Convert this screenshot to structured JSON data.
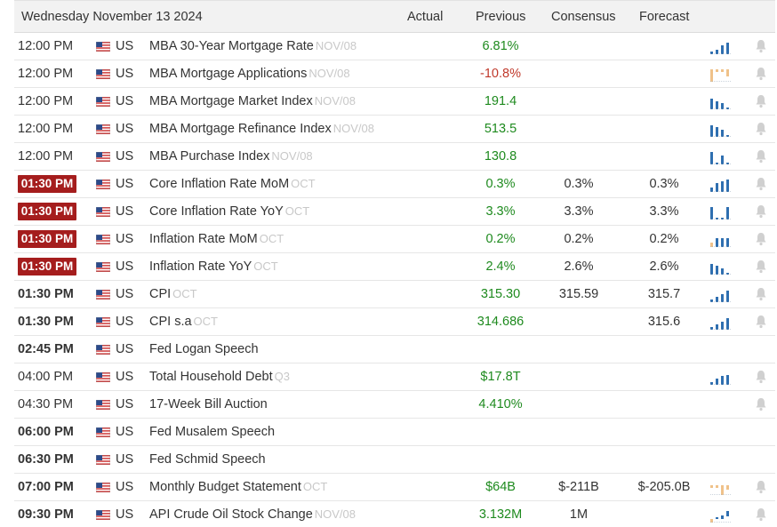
{
  "header": {
    "date": "Wednesday November 13 2024",
    "actual": "Actual",
    "previous": "Previous",
    "consensus": "Consensus",
    "forecast": "Forecast"
  },
  "colors": {
    "badge": "#a51d1d",
    "positive": "#1e8a1e",
    "negative": "#c0392b",
    "spark_blue": "#2f6fb0",
    "spark_orange": "#f0c28a"
  },
  "rows": [
    {
      "time": "12:00 PM",
      "style": "normal",
      "country": "US",
      "event": "MBA 30-Year Mortgage Rate",
      "ref": "NOV/08",
      "actual": "",
      "previous": "6.81%",
      "prev_color": "green",
      "consensus": "",
      "forecast": "",
      "spark": "mortgage-rate-spark",
      "spark_color": "blue",
      "bell": true
    },
    {
      "time": "12:00 PM",
      "style": "normal",
      "country": "US",
      "event": "MBA Mortgage Applications",
      "ref": "NOV/08",
      "actual": "",
      "previous": "-10.8%",
      "prev_color": "red",
      "consensus": "",
      "forecast": "",
      "spark": "mortgage-applications-spark",
      "spark_color": "orange",
      "bell": true
    },
    {
      "time": "12:00 PM",
      "style": "normal",
      "country": "US",
      "event": "MBA Mortgage Market Index",
      "ref": "NOV/08",
      "actual": "",
      "previous": "191.4",
      "prev_color": "green",
      "consensus": "",
      "forecast": "",
      "spark": "market-index-spark",
      "spark_color": "blue",
      "bell": true
    },
    {
      "time": "12:00 PM",
      "style": "normal",
      "country": "US",
      "event": "MBA Mortgage Refinance Index",
      "ref": "NOV/08",
      "actual": "",
      "previous": "513.5",
      "prev_color": "green",
      "consensus": "",
      "forecast": "",
      "spark": "refinance-index-spark",
      "spark_color": "blue",
      "bell": true
    },
    {
      "time": "12:00 PM",
      "style": "normal",
      "country": "US",
      "event": "MBA Purchase Index",
      "ref": "NOV/08",
      "actual": "",
      "previous": "130.8",
      "prev_color": "green",
      "consensus": "",
      "forecast": "",
      "spark": "purchase-index-spark",
      "spark_color": "blue",
      "bell": true
    },
    {
      "time": "01:30 PM",
      "style": "badge",
      "country": "US",
      "event": "Core Inflation Rate MoM",
      "ref": "OCT",
      "actual": "",
      "previous": "0.3%",
      "prev_color": "green",
      "consensus": "0.3%",
      "forecast": "0.3%",
      "spark": "core-inflation-mom-spark",
      "spark_color": "blue",
      "bell": true
    },
    {
      "time": "01:30 PM",
      "style": "badge",
      "country": "US",
      "event": "Core Inflation Rate YoY",
      "ref": "OCT",
      "actual": "",
      "previous": "3.3%",
      "prev_color": "green",
      "consensus": "3.3%",
      "forecast": "3.3%",
      "spark": "core-inflation-yoy-spark",
      "spark_color": "blue",
      "bell": true
    },
    {
      "time": "01:30 PM",
      "style": "badge",
      "country": "US",
      "event": "Inflation Rate MoM",
      "ref": "OCT",
      "actual": "",
      "previous": "0.2%",
      "prev_color": "green",
      "consensus": "0.2%",
      "forecast": "0.2%",
      "spark": "inflation-mom-spark",
      "spark_color": "mixed",
      "bell": true
    },
    {
      "time": "01:30 PM",
      "style": "badge",
      "country": "US",
      "event": "Inflation Rate YoY",
      "ref": "OCT",
      "actual": "",
      "previous": "2.4%",
      "prev_color": "green",
      "consensus": "2.6%",
      "forecast": "2.6%",
      "spark": "inflation-yoy-spark",
      "spark_color": "blue",
      "bell": true
    },
    {
      "time": "01:30 PM",
      "style": "bold",
      "country": "US",
      "event": "CPI",
      "ref": "OCT",
      "actual": "",
      "previous": "315.30",
      "prev_color": "green",
      "consensus": "315.59",
      "forecast": "315.7",
      "spark": "cpi-spark",
      "spark_color": "blue",
      "bell": true
    },
    {
      "time": "01:30 PM",
      "style": "bold",
      "country": "US",
      "event": "CPI s.a",
      "ref": "OCT",
      "actual": "",
      "previous": "314.686",
      "prev_color": "green",
      "consensus": "",
      "forecast": "315.6",
      "spark": "cpi-sa-spark",
      "spark_color": "blue",
      "bell": true
    },
    {
      "time": "02:45 PM",
      "style": "bold",
      "country": "US",
      "event": "Fed Logan Speech",
      "ref": "",
      "actual": "",
      "previous": "",
      "prev_color": "green",
      "consensus": "",
      "forecast": "",
      "spark": "",
      "spark_color": "",
      "bell": false
    },
    {
      "time": "04:00 PM",
      "style": "normal",
      "country": "US",
      "event": "Total Household Debt",
      "ref": "Q3",
      "actual": "",
      "previous": "$17.8T",
      "prev_color": "green",
      "consensus": "",
      "forecast": "",
      "spark": "household-debt-spark",
      "spark_color": "blue",
      "bell": true
    },
    {
      "time": "04:30 PM",
      "style": "normal",
      "country": "US",
      "event": "17-Week Bill Auction",
      "ref": "",
      "actual": "",
      "previous": "4.410%",
      "prev_color": "green",
      "consensus": "",
      "forecast": "",
      "spark": "",
      "spark_color": "",
      "bell": true
    },
    {
      "time": "06:00 PM",
      "style": "bold",
      "country": "US",
      "event": "Fed Musalem Speech",
      "ref": "",
      "actual": "",
      "previous": "",
      "prev_color": "green",
      "consensus": "",
      "forecast": "",
      "spark": "",
      "spark_color": "",
      "bell": false
    },
    {
      "time": "06:30 PM",
      "style": "bold",
      "country": "US",
      "event": "Fed Schmid Speech",
      "ref": "",
      "actual": "",
      "previous": "",
      "prev_color": "green",
      "consensus": "",
      "forecast": "",
      "spark": "",
      "spark_color": "",
      "bell": false
    },
    {
      "time": "07:00 PM",
      "style": "bold",
      "country": "US",
      "event": "Monthly Budget Statement",
      "ref": "OCT",
      "actual": "",
      "previous": "$64B",
      "prev_color": "green",
      "consensus": "$-211B",
      "forecast": "$-205.0B",
      "spark": "budget-statement-spark",
      "spark_color": "orange",
      "bell": true
    },
    {
      "time": "09:30 PM",
      "style": "bold",
      "country": "US",
      "event": "API Crude Oil Stock Change",
      "ref": "NOV/08",
      "actual": "",
      "previous": "3.132M",
      "prev_color": "green",
      "consensus": "1M",
      "forecast": "",
      "spark": "crude-oil-spark",
      "spark_color": "mixed",
      "bell": true
    }
  ]
}
